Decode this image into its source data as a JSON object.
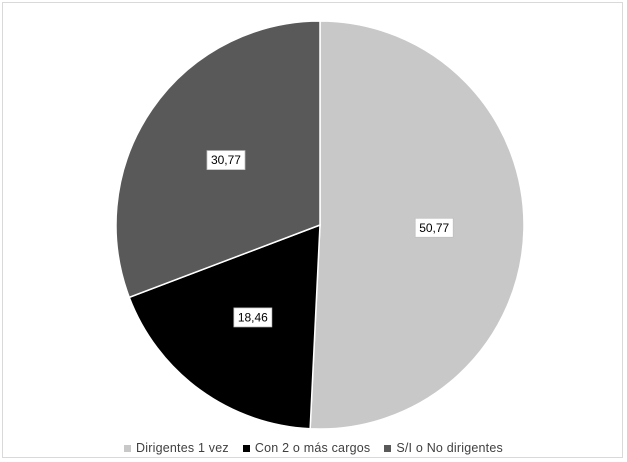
{
  "chart_data": {
    "type": "pie",
    "title": "",
    "categories": [
      "Dirigentes 1 vez",
      "Con 2 o más cargos",
      "S/I o No dirigentes"
    ],
    "values": [
      50.77,
      18.46,
      30.77
    ],
    "labels": [
      "50,77",
      "18,46",
      "30,77"
    ],
    "colors": [
      "#c8c8c8",
      "#000000",
      "#595959"
    ],
    "start_angle_deg": 0,
    "direction": "clockwise",
    "legend_position": "bottom"
  }
}
